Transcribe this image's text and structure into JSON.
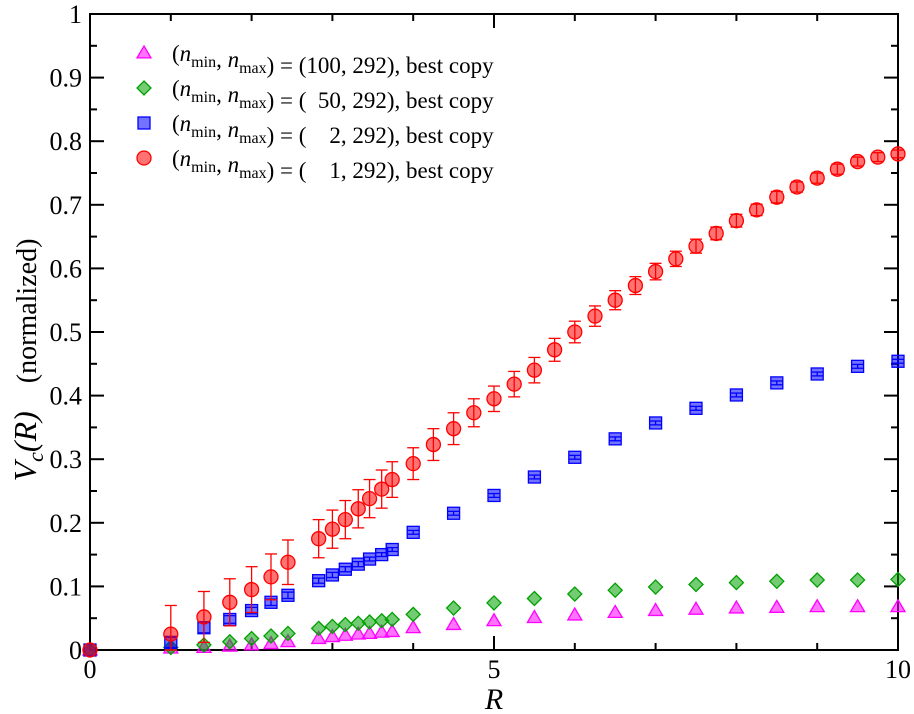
{
  "chart_data": {
    "type": "scatter",
    "title": "",
    "xlabel": "R",
    "ylabel": {
      "main": "V",
      "subscript": "c",
      "argument": "(R)",
      "note": "(normalized)"
    },
    "xlim": [
      0,
      10
    ],
    "ylim": [
      0,
      1
    ],
    "x_ticks": [
      0,
      5,
      10
    ],
    "x_tick_labels": [
      "0",
      "5",
      "10"
    ],
    "y_ticks": [
      0,
      0.1,
      0.2,
      0.3,
      0.4,
      0.5,
      0.6,
      0.7,
      0.8,
      0.9,
      1
    ],
    "y_tick_labels": [
      "0",
      "0.1",
      "0.2",
      "0.3",
      "0.4",
      "0.5",
      "0.6",
      "0.7",
      "0.8",
      "0.9",
      "1"
    ],
    "grid": false,
    "legend_position": "top-left",
    "series": [
      {
        "name": "(n_min, n_max) = (100, 292), best copy",
        "legend": {
          "open": "(",
          "n1": "n",
          "s1": "min",
          "comma": ", ",
          "n2": "n",
          "s2": "max",
          "rest": ") = (100, 292), best copy"
        },
        "marker": "triangle",
        "color": "#ff00ff",
        "points": [
          {
            "x": 0.0,
            "y": 0.0,
            "err": 0
          },
          {
            "x": 1.0,
            "y": 0.003,
            "err": 0
          },
          {
            "x": 1.41,
            "y": 0.004,
            "err": 0
          },
          {
            "x": 1.73,
            "y": 0.006,
            "err": 0
          },
          {
            "x": 2.0,
            "y": 0.008,
            "err": 0
          },
          {
            "x": 2.24,
            "y": 0.01,
            "err": 0
          },
          {
            "x": 2.45,
            "y": 0.013,
            "err": 0
          },
          {
            "x": 2.83,
            "y": 0.018,
            "err": 0
          },
          {
            "x": 3.0,
            "y": 0.021,
            "err": 0
          },
          {
            "x": 3.16,
            "y": 0.023,
            "err": 0
          },
          {
            "x": 3.32,
            "y": 0.025,
            "err": 0
          },
          {
            "x": 3.46,
            "y": 0.026,
            "err": 0
          },
          {
            "x": 3.61,
            "y": 0.028,
            "err": 0
          },
          {
            "x": 3.74,
            "y": 0.029,
            "err": 0
          },
          {
            "x": 4.0,
            "y": 0.035,
            "err": 0
          },
          {
            "x": 4.5,
            "y": 0.04,
            "err": 0
          },
          {
            "x": 5.0,
            "y": 0.046,
            "err": 0
          },
          {
            "x": 5.5,
            "y": 0.051,
            "err": 0
          },
          {
            "x": 6.0,
            "y": 0.055,
            "err": 0
          },
          {
            "x": 6.5,
            "y": 0.059,
            "err": 0
          },
          {
            "x": 7.0,
            "y": 0.062,
            "err": 0
          },
          {
            "x": 7.5,
            "y": 0.064,
            "err": 0
          },
          {
            "x": 8.0,
            "y": 0.066,
            "err": 0
          },
          {
            "x": 8.5,
            "y": 0.067,
            "err": 0
          },
          {
            "x": 9.0,
            "y": 0.068,
            "err": 0
          },
          {
            "x": 9.5,
            "y": 0.068,
            "err": 0
          },
          {
            "x": 10.0,
            "y": 0.068,
            "err": 0
          }
        ]
      },
      {
        "name": "(n_min, n_max) = ( 50, 292), best copy",
        "legend": {
          "open": "(",
          "n1": "n",
          "s1": "min",
          "comma": ", ",
          "n2": "n",
          "s2": "max",
          "rest": ") = (  50, 292), best copy"
        },
        "marker": "diamond",
        "color": "#00a000",
        "points": [
          {
            "x": 0.0,
            "y": 0.0,
            "err": 0
          },
          {
            "x": 1.0,
            "y": 0.004,
            "err": 0
          },
          {
            "x": 1.41,
            "y": 0.008,
            "err": 0
          },
          {
            "x": 1.73,
            "y": 0.013,
            "err": 0
          },
          {
            "x": 2.0,
            "y": 0.018,
            "err": 0
          },
          {
            "x": 2.24,
            "y": 0.022,
            "err": 0
          },
          {
            "x": 2.45,
            "y": 0.026,
            "err": 0
          },
          {
            "x": 2.83,
            "y": 0.034,
            "err": 0
          },
          {
            "x": 3.0,
            "y": 0.037,
            "err": 0
          },
          {
            "x": 3.16,
            "y": 0.04,
            "err": 0
          },
          {
            "x": 3.32,
            "y": 0.042,
            "err": 0
          },
          {
            "x": 3.46,
            "y": 0.044,
            "err": 0
          },
          {
            "x": 3.61,
            "y": 0.046,
            "err": 0
          },
          {
            "x": 3.74,
            "y": 0.048,
            "err": 0
          },
          {
            "x": 4.0,
            "y": 0.056,
            "err": 0
          },
          {
            "x": 4.5,
            "y": 0.066,
            "err": 0
          },
          {
            "x": 5.0,
            "y": 0.074,
            "err": 0
          },
          {
            "x": 5.5,
            "y": 0.081,
            "err": 0
          },
          {
            "x": 6.0,
            "y": 0.088,
            "err": 0
          },
          {
            "x": 6.5,
            "y": 0.094,
            "err": 0
          },
          {
            "x": 7.0,
            "y": 0.099,
            "err": 0
          },
          {
            "x": 7.5,
            "y": 0.103,
            "err": 0
          },
          {
            "x": 8.0,
            "y": 0.106,
            "err": 0
          },
          {
            "x": 8.5,
            "y": 0.108,
            "err": 0
          },
          {
            "x": 9.0,
            "y": 0.11,
            "err": 0
          },
          {
            "x": 9.5,
            "y": 0.11,
            "err": 0
          },
          {
            "x": 10.0,
            "y": 0.111,
            "err": 0
          }
        ]
      },
      {
        "name": "(n_min, n_max) = ( 2, 292), best copy",
        "legend": {
          "open": "(",
          "n1": "n",
          "s1": "min",
          "comma": ", ",
          "n2": "n",
          "s2": "max",
          "rest": ") = (    2, 292), best copy"
        },
        "marker": "square",
        "color": "#0000ff",
        "points": [
          {
            "x": 0.0,
            "y": 0.0,
            "err": 0
          },
          {
            "x": 1.0,
            "y": 0.012,
            "err": 0.008
          },
          {
            "x": 1.41,
            "y": 0.035,
            "err": 0.008
          },
          {
            "x": 1.73,
            "y": 0.048,
            "err": 0.006
          },
          {
            "x": 2.0,
            "y": 0.062,
            "err": 0.005
          },
          {
            "x": 2.24,
            "y": 0.075,
            "err": 0.005
          },
          {
            "x": 2.45,
            "y": 0.086,
            "err": 0.005
          },
          {
            "x": 2.83,
            "y": 0.109,
            "err": 0.004
          },
          {
            "x": 3.0,
            "y": 0.118,
            "err": 0.004
          },
          {
            "x": 3.16,
            "y": 0.127,
            "err": 0.004
          },
          {
            "x": 3.32,
            "y": 0.135,
            "err": 0.004
          },
          {
            "x": 3.46,
            "y": 0.143,
            "err": 0.003
          },
          {
            "x": 3.61,
            "y": 0.15,
            "err": 0.003
          },
          {
            "x": 3.74,
            "y": 0.158,
            "err": 0.003
          },
          {
            "x": 4.0,
            "y": 0.185,
            "err": 0.003
          },
          {
            "x": 4.5,
            "y": 0.215,
            "err": 0.003
          },
          {
            "x": 5.0,
            "y": 0.243,
            "err": 0.003
          },
          {
            "x": 5.5,
            "y": 0.272,
            "err": 0.003
          },
          {
            "x": 6.0,
            "y": 0.303,
            "err": 0.003
          },
          {
            "x": 6.5,
            "y": 0.332,
            "err": 0.003
          },
          {
            "x": 7.0,
            "y": 0.357,
            "err": 0.003
          },
          {
            "x": 7.5,
            "y": 0.38,
            "err": 0.003
          },
          {
            "x": 8.0,
            "y": 0.401,
            "err": 0.003
          },
          {
            "x": 8.5,
            "y": 0.42,
            "err": 0.003
          },
          {
            "x": 9.0,
            "y": 0.434,
            "err": 0.003
          },
          {
            "x": 9.5,
            "y": 0.446,
            "err": 0.003
          },
          {
            "x": 10.0,
            "y": 0.454,
            "err": 0.003
          }
        ]
      },
      {
        "name": "(n_min, n_max) = ( 1, 292), best copy",
        "legend": {
          "open": "(",
          "n1": "n",
          "s1": "min",
          "comma": ", ",
          "n2": "n",
          "s2": "max",
          "rest": ") = (    1, 292), best copy"
        },
        "marker": "circle",
        "color": "#ff0000",
        "points": [
          {
            "x": 0.0,
            "y": 0.0,
            "err": 0
          },
          {
            "x": 1.0,
            "y": 0.025,
            "err": 0.045
          },
          {
            "x": 1.41,
            "y": 0.052,
            "err": 0.04
          },
          {
            "x": 1.73,
            "y": 0.075,
            "err": 0.037
          },
          {
            "x": 2.0,
            "y": 0.095,
            "err": 0.036
          },
          {
            "x": 2.24,
            "y": 0.115,
            "err": 0.036
          },
          {
            "x": 2.45,
            "y": 0.138,
            "err": 0.035
          },
          {
            "x": 2.83,
            "y": 0.175,
            "err": 0.03
          },
          {
            "x": 3.0,
            "y": 0.19,
            "err": 0.03
          },
          {
            "x": 3.16,
            "y": 0.205,
            "err": 0.03
          },
          {
            "x": 3.32,
            "y": 0.222,
            "err": 0.03
          },
          {
            "x": 3.46,
            "y": 0.238,
            "err": 0.03
          },
          {
            "x": 3.61,
            "y": 0.253,
            "err": 0.03
          },
          {
            "x": 3.74,
            "y": 0.268,
            "err": 0.028
          },
          {
            "x": 4.0,
            "y": 0.293,
            "err": 0.025
          },
          {
            "x": 4.25,
            "y": 0.323,
            "err": 0.025
          },
          {
            "x": 4.5,
            "y": 0.348,
            "err": 0.025
          },
          {
            "x": 4.75,
            "y": 0.373,
            "err": 0.022
          },
          {
            "x": 5.0,
            "y": 0.395,
            "err": 0.02
          },
          {
            "x": 5.25,
            "y": 0.418,
            "err": 0.02
          },
          {
            "x": 5.5,
            "y": 0.44,
            "err": 0.02
          },
          {
            "x": 5.75,
            "y": 0.472,
            "err": 0.018
          },
          {
            "x": 6.0,
            "y": 0.5,
            "err": 0.017
          },
          {
            "x": 6.25,
            "y": 0.525,
            "err": 0.016
          },
          {
            "x": 6.5,
            "y": 0.55,
            "err": 0.015
          },
          {
            "x": 6.75,
            "y": 0.573,
            "err": 0.014
          },
          {
            "x": 7.0,
            "y": 0.595,
            "err": 0.013
          },
          {
            "x": 7.25,
            "y": 0.615,
            "err": 0.012
          },
          {
            "x": 7.5,
            "y": 0.635,
            "err": 0.011
          },
          {
            "x": 7.75,
            "y": 0.655,
            "err": 0.01
          },
          {
            "x": 8.0,
            "y": 0.675,
            "err": 0.01
          },
          {
            "x": 8.25,
            "y": 0.692,
            "err": 0.009
          },
          {
            "x": 8.5,
            "y": 0.712,
            "err": 0.009
          },
          {
            "x": 8.75,
            "y": 0.728,
            "err": 0.008
          },
          {
            "x": 9.0,
            "y": 0.742,
            "err": 0.008
          },
          {
            "x": 9.25,
            "y": 0.756,
            "err": 0.008
          },
          {
            "x": 9.5,
            "y": 0.768,
            "err": 0.007
          },
          {
            "x": 9.75,
            "y": 0.775,
            "err": 0.007
          },
          {
            "x": 10.0,
            "y": 0.78,
            "err": 0.006
          }
        ]
      }
    ]
  }
}
